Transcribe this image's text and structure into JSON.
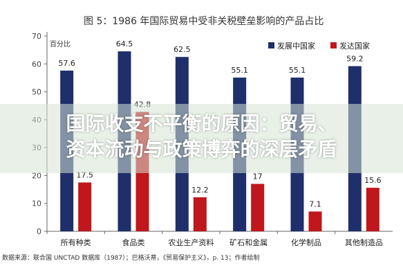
{
  "chart_data": {
    "type": "bar",
    "title": "图 5：1986 年国际贸易中受非关税壁垒影响的产品占比",
    "ylabel": "百分比",
    "xlabel": "",
    "ylim": [
      0,
      70
    ],
    "yticks": [
      0,
      10,
      20,
      30,
      40,
      50,
      60,
      70
    ],
    "categories": [
      "所有种类",
      "食品类",
      "农业生产资料",
      "矿石和金属",
      "化学制品",
      "其他制造品"
    ],
    "series": [
      {
        "name": "发展中国家",
        "color": "#1f2f6b",
        "values": [
          57.6,
          64.5,
          62.5,
          55.1,
          55.1,
          59.2
        ]
      },
      {
        "name": "发达国家",
        "color": "#c0171c",
        "values": [
          17.5,
          42.8,
          12.2,
          17,
          7.1,
          15.6
        ]
      }
    ],
    "value_labels": [
      [
        "57.6",
        "64.5",
        "62.5",
        "55.1",
        "55.1",
        "59.2"
      ],
      [
        "17.5",
        "42.8",
        "12.2",
        "17",
        "7.1",
        "15.6"
      ]
    ],
    "legend_position": "top-right",
    "grid": false
  },
  "source": "数据来源：联合国 UNCTAD 数据库（1987）；巴格沃蒂，《贸易保护主义》，p. 13；作者绘制",
  "overlay_caption": {
    "line1": "国际收支不平衡的原因：贸易、",
    "line2": "资本流动与政策博弈的深层矛盾"
  }
}
